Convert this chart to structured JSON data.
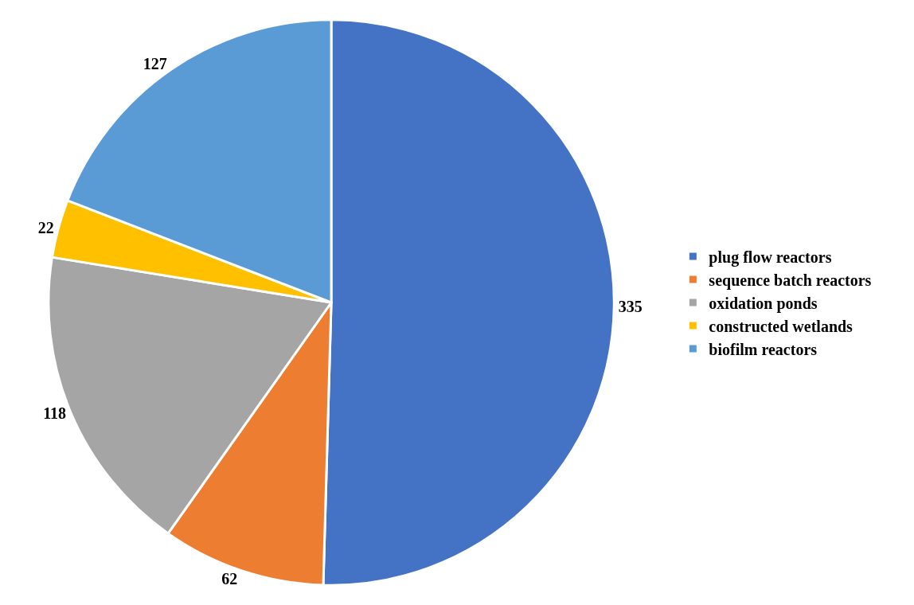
{
  "chart_data": {
    "type": "pie",
    "categories": [
      "plug flow reactors",
      "sequence batch reactors",
      "oxidation ponds",
      "constructed wetlands",
      "biofilm reactors"
    ],
    "values": [
      335,
      62,
      118,
      22,
      127
    ],
    "colors": [
      "#4472c4",
      "#ed7d31",
      "#a5a5a5",
      "#ffc000",
      "#5b9bd5"
    ],
    "data_labels": true,
    "legend": "right"
  }
}
